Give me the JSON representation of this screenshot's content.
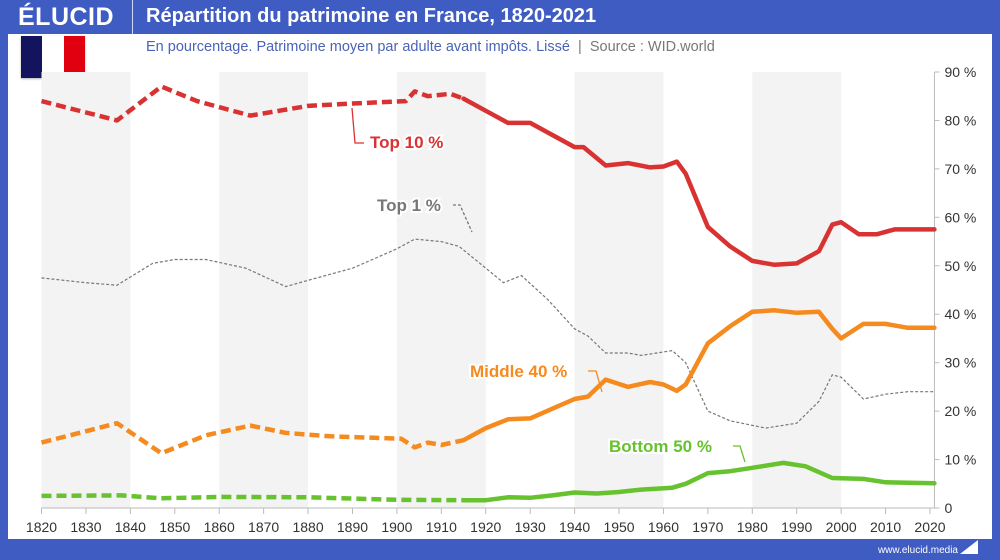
{
  "header": {
    "logo": "ÉLUCID",
    "title": "Répartition du patrimoine en France, 1820-2021",
    "subtitle": "En pourcentage. Patrimoine moyen par adulte avant impôts. Lissé",
    "source": "Source : WID.world",
    "separator": "|"
  },
  "footer": {
    "url": "www.elucid.media"
  },
  "flag_colors": [
    "#14145e",
    "#ffffff",
    "#e1000f"
  ],
  "chart_data": {
    "type": "line",
    "title": "Répartition du patrimoine en France, 1820-2021",
    "xlim": [
      1820,
      2021
    ],
    "ylim": [
      0,
      90
    ],
    "x_ticks": [
      "1820",
      "1830",
      "1840",
      "1850",
      "1860",
      "1870",
      "1880",
      "1890",
      "1900",
      "1910",
      "1920",
      "1930",
      "1940",
      "1950",
      "1960",
      "1970",
      "1980",
      "1990",
      "2000",
      "2010",
      "2020"
    ],
    "y_ticks": [
      "0",
      "10 %",
      "20 %",
      "30 %",
      "40 %",
      "50 %",
      "60 %",
      "70 %",
      "80 %",
      "90 %"
    ],
    "y_axis_side": "right",
    "grid": false,
    "shaded_bands": "alternating 20-year periods",
    "dashed_until": 1913,
    "series": [
      {
        "name": "Top 10 %",
        "color": "#d93232",
        "style": "thick",
        "x": [
          1820,
          1837,
          1847,
          1855,
          1867,
          1880,
          1890,
          1902,
          1904,
          1907,
          1912,
          1915,
          1920,
          1925,
          1930,
          1935,
          1940,
          1942,
          1947,
          1952,
          1957,
          1960,
          1963,
          1965,
          1970,
          1975,
          1980,
          1985,
          1990,
          1995,
          1998,
          2000,
          2004,
          2008,
          2012,
          2021
        ],
        "y": [
          84,
          80,
          87,
          84,
          81,
          83,
          83.5,
          84,
          86,
          85,
          85.5,
          84.5,
          82,
          79.5,
          79.5,
          77,
          74.5,
          74.5,
          70.7,
          71.2,
          70.3,
          70.5,
          71.5,
          69,
          58,
          54,
          51,
          50.2,
          50.5,
          53,
          58.5,
          59,
          56.5,
          56.5,
          57.5,
          57.5
        ]
      },
      {
        "name": "Top 1 %",
        "color": "#777777",
        "style": "thin-dashed",
        "x": [
          1820,
          1830,
          1837,
          1845,
          1850,
          1857,
          1866,
          1875,
          1880,
          1890,
          1900,
          1904,
          1910,
          1914,
          1918,
          1924,
          1928,
          1934,
          1940,
          1943,
          1947,
          1952,
          1955,
          1962,
          1965,
          1970,
          1975,
          1983,
          1990,
          1995,
          1998,
          2000,
          2005,
          2010,
          2015,
          2021
        ],
        "y": [
          47.5,
          46.5,
          46,
          50.5,
          51.3,
          51.3,
          49.5,
          45.7,
          47,
          49.5,
          53.5,
          55.5,
          55,
          54,
          51,
          46.5,
          48,
          43,
          37,
          35.5,
          32,
          32,
          31.5,
          32.5,
          30,
          20,
          18,
          16.5,
          17.5,
          22,
          27.5,
          27,
          22.5,
          23.5,
          24,
          24
        ]
      },
      {
        "name": "Middle 40 %",
        "color": "#f58a1f",
        "style": "thick",
        "x": [
          1820,
          1837,
          1847,
          1857,
          1867,
          1875,
          1885,
          1895,
          1901,
          1904,
          1907,
          1910,
          1915,
          1920,
          1925,
          1930,
          1935,
          1940,
          1943,
          1947,
          1952,
          1957,
          1960,
          1963,
          1965,
          1970,
          1975,
          1980,
          1985,
          1990,
          1995,
          1998,
          2000,
          2005,
          2010,
          2015,
          2021
        ],
        "y": [
          13.5,
          17.5,
          11.3,
          15,
          17,
          15.5,
          14.8,
          14.5,
          14.3,
          12.5,
          13.5,
          13,
          14,
          16.5,
          18.3,
          18.5,
          20.5,
          22.5,
          23,
          26.5,
          25,
          26,
          25.5,
          24.2,
          25.5,
          34,
          37.5,
          40.5,
          40.8,
          40.3,
          40.5,
          37,
          35,
          38,
          38,
          37.2,
          37.2
        ]
      },
      {
        "name": "Bottom 50 %",
        "color": "#66c22e",
        "style": "thick",
        "x": [
          1820,
          1838,
          1847,
          1860,
          1880,
          1900,
          1915,
          1920,
          1925,
          1930,
          1935,
          1940,
          1945,
          1950,
          1955,
          1962,
          1965,
          1970,
          1975,
          1980,
          1987,
          1992,
          1998,
          2005,
          2010,
          2021
        ],
        "y": [
          2.5,
          2.6,
          2,
          2.3,
          2.2,
          1.7,
          1.6,
          1.6,
          2.2,
          2.1,
          2.6,
          3.2,
          3,
          3.3,
          3.8,
          4.2,
          5,
          7.2,
          7.6,
          8.3,
          9.3,
          8.6,
          6.2,
          6,
          5.3,
          5.1
        ]
      }
    ]
  }
}
